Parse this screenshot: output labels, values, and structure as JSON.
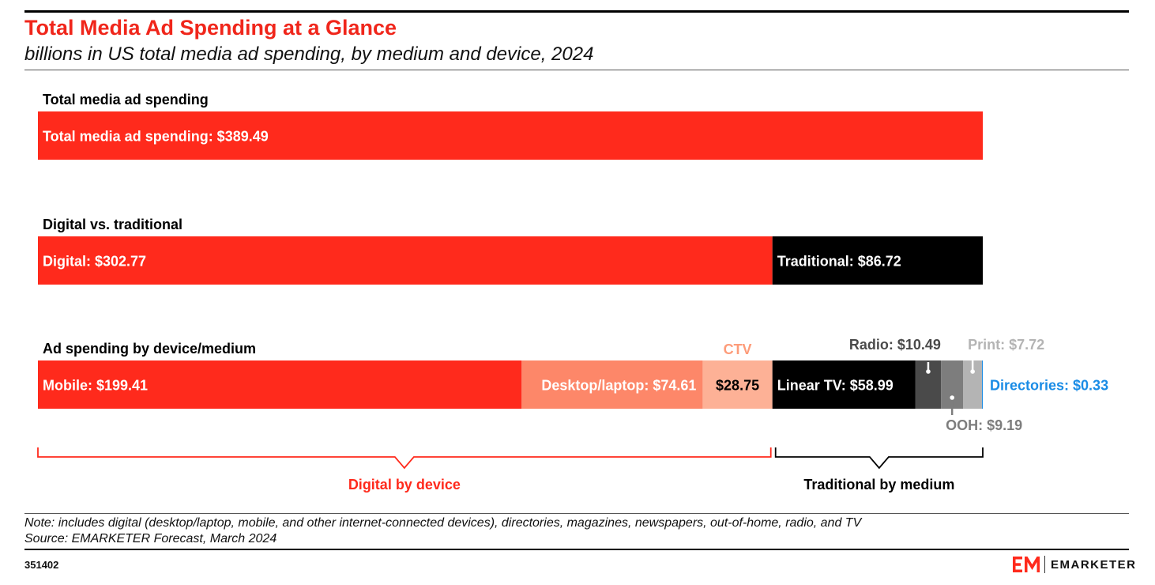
{
  "header": {
    "title": "Total Media Ad Spending at a Glance",
    "subtitle": "billions in US total media ad spending, by medium and device, 2024"
  },
  "chart_data": {
    "type": "bar",
    "orientation": "horizontal-stacked",
    "unit": "billions USD",
    "xlim": [
      0,
      389.49
    ],
    "rows": [
      {
        "label": "Total media ad spending",
        "segments": [
          {
            "name": "Total media ad spending",
            "value": 389.49,
            "display": "Total media ad spending: $389.49",
            "color": "#ff2a1c",
            "text_color": "#ffffff"
          }
        ]
      },
      {
        "label": "Digital vs. traditional",
        "segments": [
          {
            "name": "Digital",
            "value": 302.77,
            "display": "Digital: $302.77",
            "color": "#ff2a1c",
            "text_color": "#ffffff"
          },
          {
            "name": "Traditional",
            "value": 86.72,
            "display": "Traditional: $86.72",
            "color": "#000000",
            "text_color": "#ffffff"
          }
        ]
      },
      {
        "label": "Ad spending by device/medium",
        "segments": [
          {
            "name": "Mobile",
            "value": 199.41,
            "display": "Mobile: $199.41",
            "color": "#ff2a1c",
            "text_color": "#ffffff",
            "label_pos": "left"
          },
          {
            "name": "Desktop/laptop",
            "value": 74.61,
            "display": "Desktop/laptop: $74.61",
            "color": "#fd8769",
            "text_color": "#ffffff",
            "label_pos": "right"
          },
          {
            "name": "CTV",
            "value": 28.75,
            "display": "$28.75",
            "color": "#fdb196",
            "text_color": "#000000",
            "label_pos": "center",
            "callout": "CTV",
            "callout_color": "#fd9c7a",
            "callout_pos": "above-center"
          },
          {
            "name": "Linear TV",
            "value": 58.99,
            "display": "Linear TV: $58.99",
            "color": "#000000",
            "text_color": "#ffffff",
            "label_pos": "left"
          },
          {
            "name": "Radio",
            "value": 10.49,
            "color": "#4a4a4a",
            "callout": "Radio: $10.49",
            "callout_color": "#4a4a4a",
            "callout_pos": "above-right-aligned"
          },
          {
            "name": "OOH",
            "value": 9.19,
            "color": "#7d7d7d",
            "callout": "OOH: $9.19",
            "callout_color": "#7d7d7d",
            "callout_pos": "below"
          },
          {
            "name": "Print",
            "value": 7.72,
            "color": "#b4b4b4",
            "callout": "Print: $7.72",
            "callout_color": "#b4b4b4",
            "callout_pos": "above-left-aligned"
          },
          {
            "name": "Directories",
            "value": 0.33,
            "color": "#1a8ce6",
            "callout": "Directories: $0.33",
            "callout_color": "#1a8ce6",
            "callout_pos": "right"
          }
        ]
      }
    ],
    "brackets": [
      {
        "label": "Digital by device",
        "from": 0,
        "to": 302.77,
        "color": "#ff2a1c"
      },
      {
        "label": "Traditional by medium",
        "from": 302.77,
        "to": 389.49,
        "color": "#000000"
      }
    ]
  },
  "footer": {
    "note": "Note: includes digital (desktop/laptop, mobile, and other internet-connected devices), directories, magazines, newspapers, out-of-home, radio, and TV",
    "source": "Source: EMARKETER Forecast, March 2024",
    "chart_id": "351402",
    "brand": "EMARKETER",
    "brand_mark": "EM",
    "brand_color": "#ff2a1c"
  }
}
